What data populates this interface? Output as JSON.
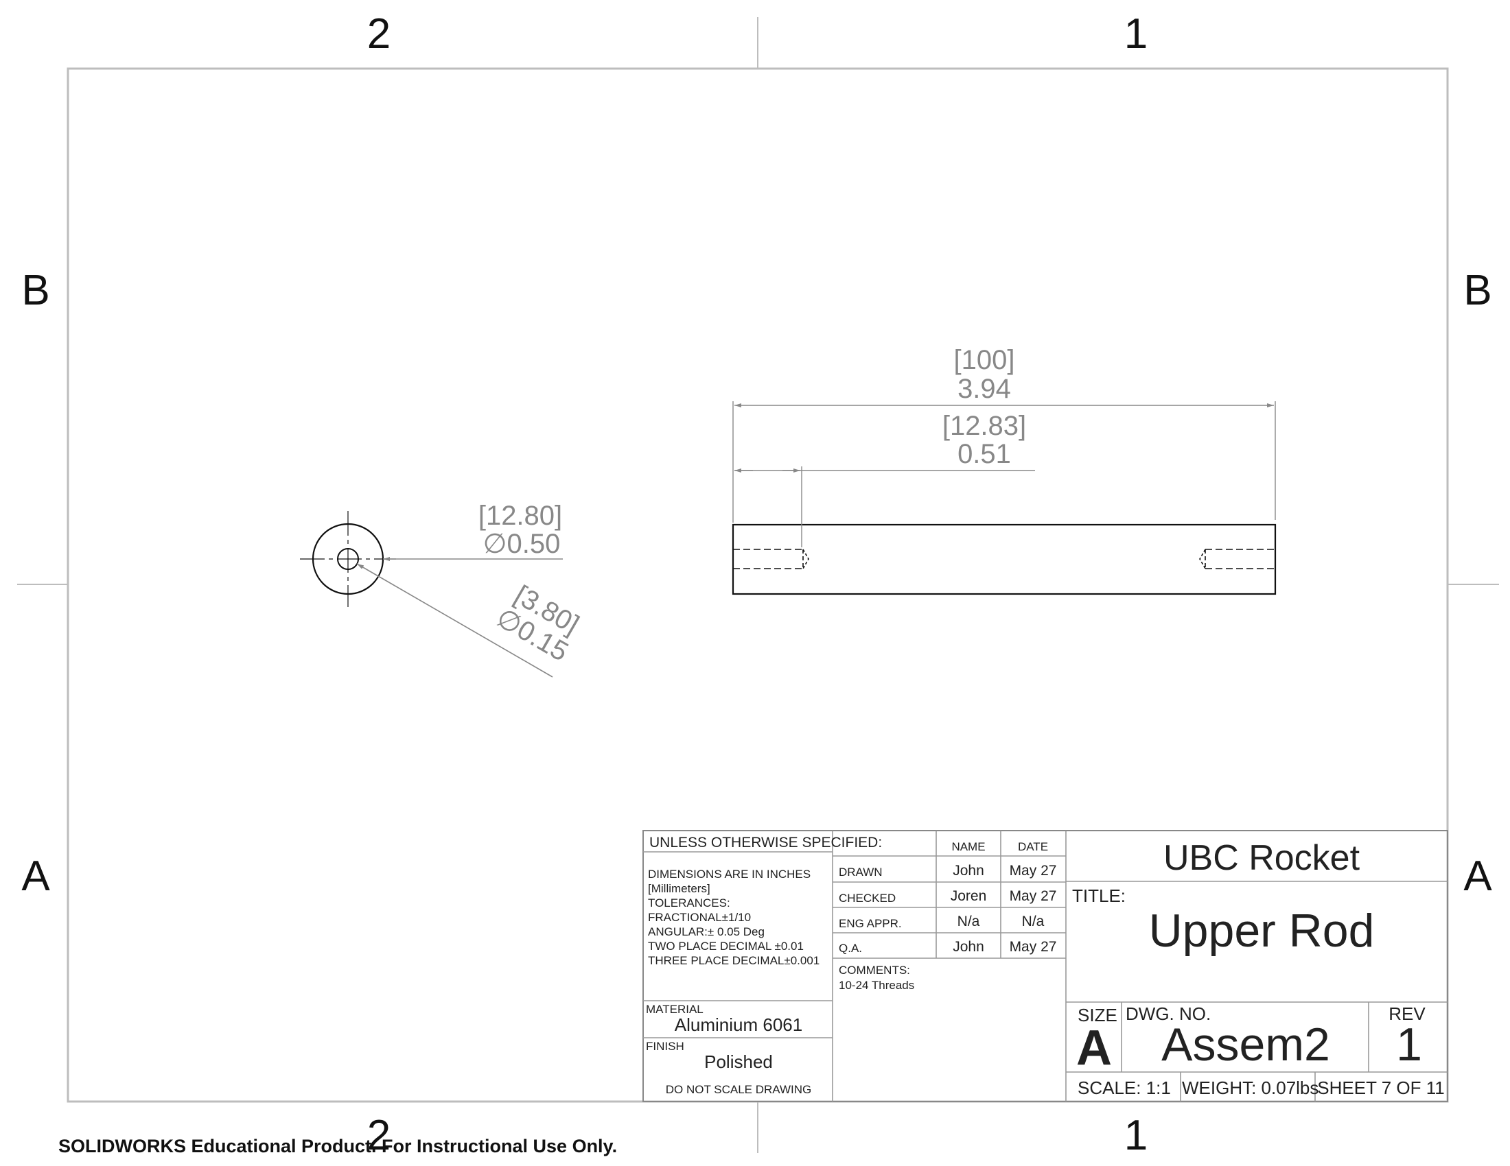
{
  "zones": {
    "top": [
      "2",
      "1"
    ],
    "bottom": [
      "2",
      "1"
    ],
    "left": [
      "B",
      "A"
    ],
    "right": [
      "B",
      "A"
    ]
  },
  "dimensions": {
    "overall_length_mm": "[100]",
    "overall_length_in": "3.94",
    "thread_depth_mm": "[12.83]",
    "thread_depth_in": "0.51",
    "outer_diameter_mm": "[12.80]",
    "outer_diameter_in": "∅0.50",
    "hole_diameter_mm": "[3.80]",
    "hole_diameter_in": "∅0.15"
  },
  "title_block": {
    "unless_specified": "UNLESS OTHERWISE SPECIFIED:",
    "tolerance_notes": [
      "DIMENSIONS ARE IN INCHES",
      "[Millimeters]",
      "TOLERANCES:",
      "FRACTIONAL±1/10",
      "ANGULAR:± 0.05 Deg",
      "TWO PLACE DECIMAL  ±0.01",
      "THREE PLACE DECIMAL±0.001"
    ],
    "name_header": "NAME",
    "date_header": "DATE",
    "rows": [
      {
        "role": "DRAWN",
        "name": "John",
        "date": "May 27"
      },
      {
        "role": "CHECKED",
        "name": "Joren",
        "date": "May 27"
      },
      {
        "role": "ENG APPR.",
        "name": "N/a",
        "date": "N/a"
      },
      {
        "role": "Q.A.",
        "name": "John",
        "date": "May 27"
      }
    ],
    "comments_label": "COMMENTS:",
    "comments_value": "10-24 Threads",
    "material_label": "MATERIAL",
    "material_value": "Aluminium 6061",
    "finish_label": "FINISH",
    "finish_value": "Polished",
    "do_not_scale": "DO NOT SCALE DRAWING",
    "company": "UBC Rocket",
    "title_label": "TITLE:",
    "title_value": "Upper Rod",
    "size_label": "SIZE",
    "size_value": "A",
    "dwg_no_label": "DWG.  NO.",
    "dwg_no_value": "Assem2",
    "rev_label": "REV",
    "rev_value": "1",
    "scale": "SCALE: 1:1",
    "weight": "WEIGHT: 0.07lbs",
    "sheet": "SHEET 7 OF 11"
  },
  "watermark": "SOLIDWORKS Educational Product. For Instructional Use Only."
}
